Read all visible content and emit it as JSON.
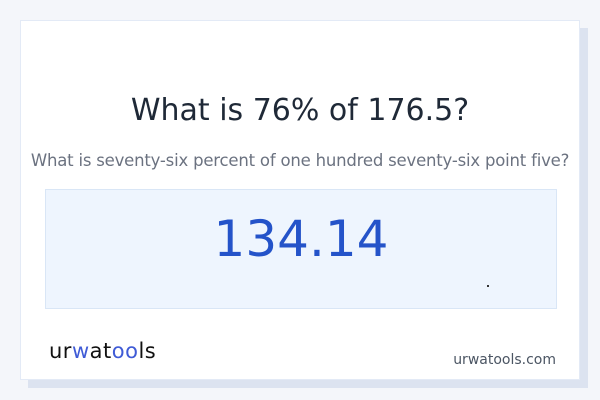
{
  "question": {
    "title": "What is 76% of 176.5?",
    "subtitle": "What is seventy-six percent of one hundred seventy-six point five?"
  },
  "result": {
    "value": "134.14"
  },
  "footer": {
    "logo_text": "urwatools",
    "site": "urwatools.com"
  },
  "colors": {
    "accent": "#2453c9",
    "result_bg": "#eef5fe"
  }
}
